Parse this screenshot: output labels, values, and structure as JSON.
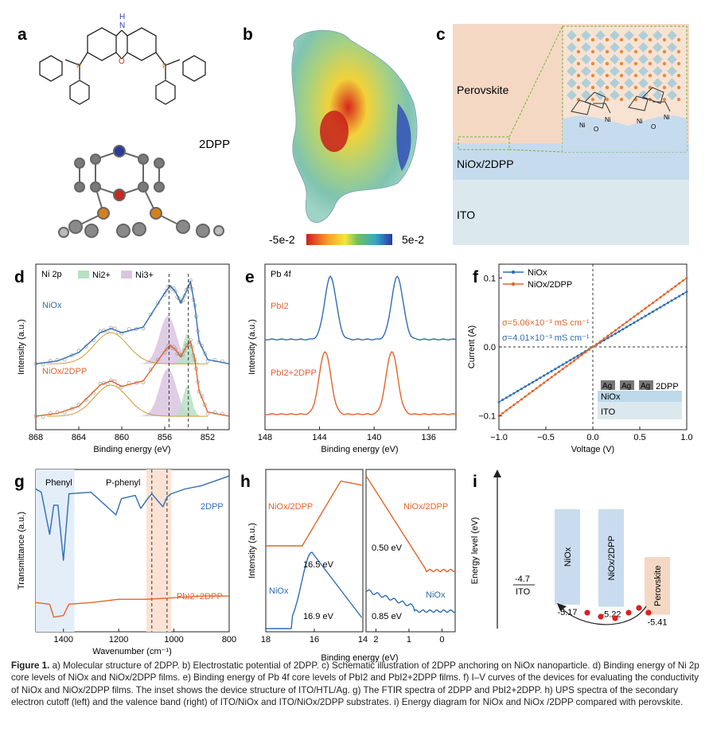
{
  "panel_letters": [
    "a",
    "b",
    "c",
    "d",
    "e",
    "f",
    "g",
    "h",
    "i"
  ],
  "panel_a": {
    "molecule_label": "2DPP",
    "atom_n": "N",
    "atom_h": "H",
    "atom_o": "O",
    "atom_p": "P"
  },
  "panel_b": {
    "colorbar_min": "-5e-2",
    "colorbar_max": "5e-2"
  },
  "panel_c": {
    "layers": [
      "Perovskite",
      "NiOx/2DPP",
      "ITO"
    ],
    "ni_label": "Ni",
    "o_label": "O"
  },
  "panel_d": {
    "corner_label": "Ni 2p",
    "legend": [
      "Ni2+",
      "Ni3+"
    ],
    "traces": [
      "NiOx",
      "NiOx/2DPP"
    ],
    "xlabel": "Binding energy (eV)",
    "ylabel": "Intensity (a.u.)",
    "ticks": [
      "868",
      "864",
      "860",
      "856",
      "852"
    ]
  },
  "panel_e": {
    "corner_label": "Pb 4f",
    "traces": [
      "PbI2",
      "PbI2+2DPP"
    ],
    "xlabel": "Binding energy (eV)",
    "ylabel": "Intensity (a.u.)",
    "ticks": [
      "148",
      "144",
      "140",
      "136"
    ]
  },
  "panel_f": {
    "legend": [
      "NiOx",
      "NiOx/2DPP"
    ],
    "sigma_orange": "σ=5.06×10⁻³ mS cm⁻¹",
    "sigma_blue": "σ=4.01×10⁻³ mS cm⁻¹",
    "xlabel": "Voltage (V)",
    "ylabel": "Current (A)",
    "xticks": [
      "−1.0",
      "−0.5",
      "0.0",
      "0.5",
      "1.0"
    ],
    "yticks": [
      "0.1",
      "0.0",
      "−0.1"
    ],
    "inset": {
      "ag": "Ag",
      "htl": "2DPP",
      "nio": "NiOx",
      "ito": "ITO"
    }
  },
  "panel_g": {
    "band_labels": [
      "Phenyl",
      "P-phenyl"
    ],
    "traces": [
      "2DPP",
      "PbI2+2DPP"
    ],
    "xlabel": "Wavenumber (cm⁻¹)",
    "ylabel": "Transmittance (a.u.)",
    "ticks": [
      "1400",
      "1200",
      "1000",
      "800"
    ]
  },
  "panel_h": {
    "traces": [
      "NiOx/2DPP",
      "NiOx",
      "NiOx/2DPP",
      "NiOx"
    ],
    "values": [
      "16.5 eV",
      "16.9 eV",
      "0.50 eV",
      "0.85 eV"
    ],
    "xlabel": "Binding energy (eV)",
    "ylabel": "Intensity (a.u.)",
    "left_ticks": [
      "18",
      "16",
      "14"
    ],
    "right_ticks": [
      "2",
      "1",
      "0"
    ]
  },
  "panel_i": {
    "ylabel": "Energy level (eV)",
    "ito_value": "-4.7",
    "ito_label": "ITO",
    "bars": [
      "NiOx",
      "NiOx/2DPP",
      "Perovskite"
    ],
    "levels": [
      "-5.17",
      "-5.22",
      "-5.41"
    ]
  },
  "caption": {
    "figure_label": "Figure 1.",
    "text": "a) Molecular structure of 2DPP. b) Electrostatic potential of 2DPP. c) Schematic illustration of 2DPP anchoring on NiOx nanoparticle. d) Binding energy of Ni 2p core levels of NiOx and NiOx/2DPP films. e) Binding energy of Pb 4f core levels of PbI2 and PbI2+2DPP films. f) I–V curves of the devices for evaluating the conductivity of NiOx and NiOx/2DPP films. The inset shows the device structure of ITO/HTL/Ag. g) The FTIR spectra of 2DPP and PbI2+2DPP. h) UPS spectra of the secondary electron cutoff (left) and the valence band (right) of ITO/NiOx and ITO/NiOx/2DPP substrates. i) Energy diagram for NiOx and NiOx /2DPP compared with perovskite."
  },
  "chart_data": [
    {
      "panel": "d",
      "type": "line",
      "title": "Ni 2p",
      "xlabel": "Binding energy (eV)",
      "ylabel": "Intensity (a.u.)",
      "xlim": [
        868,
        850
      ],
      "series": [
        {
          "name": "NiOx",
          "x": [
            868,
            866,
            864,
            862,
            861,
            860,
            858,
            856,
            855.5,
            855,
            854.5,
            854,
            853.6,
            853.2,
            852.8,
            852,
            850
          ],
          "y": [
            0.42,
            0.44,
            0.5,
            0.64,
            0.67,
            0.64,
            0.68,
            0.92,
            0.97,
            0.93,
            0.85,
            0.93,
            1.0,
            0.83,
            0.58,
            0.45,
            0.42
          ]
        },
        {
          "name": "NiOx/2DPP",
          "x": [
            868,
            866,
            864,
            862,
            861,
            860,
            858,
            856,
            855.5,
            855,
            854.5,
            854,
            853.6,
            853.2,
            852.8,
            852,
            850
          ],
          "y": [
            0.05,
            0.07,
            0.12,
            0.27,
            0.3,
            0.26,
            0.3,
            0.51,
            0.55,
            0.52,
            0.47,
            0.54,
            0.58,
            0.45,
            0.23,
            0.08,
            0.05
          ]
        }
      ],
      "reference_lines": [
        855.6,
        853.8
      ]
    },
    {
      "panel": "e",
      "type": "line",
      "title": "Pb 4f",
      "xlabel": "Binding energy (eV)",
      "ylabel": "Intensity (a.u.)",
      "xlim": [
        148,
        134
      ],
      "series": [
        {
          "name": "PbI2",
          "peaks": [
            143.2,
            138.3
          ],
          "baseline": 0.55,
          "height": 0.42
        },
        {
          "name": "PbI2+2DPP",
          "peaks": [
            143.6,
            138.7
          ],
          "baseline": 0.05,
          "height": 0.42
        }
      ]
    },
    {
      "panel": "f",
      "type": "scatter",
      "xlabel": "Voltage (V)",
      "ylabel": "Current (A)",
      "xlim": [
        -1.0,
        1.0
      ],
      "ylim": [
        -0.12,
        0.12
      ],
      "series": [
        {
          "name": "NiOx",
          "slope": 0.08,
          "color": "#2f6db3"
        },
        {
          "name": "NiOx/2DPP",
          "slope": 0.1,
          "color": "#e3642a"
        }
      ]
    },
    {
      "panel": "g",
      "type": "line",
      "xlabel": "Wavenumber (cm⁻¹)",
      "ylabel": "Transmittance (a.u.)",
      "xlim": [
        1500,
        800
      ],
      "series": [
        {
          "name": "2DPP",
          "x": [
            1500,
            1480,
            1450,
            1435,
            1420,
            1400,
            1380,
            1300,
            1210,
            1190,
            1140,
            1120,
            1095,
            1080,
            1040,
            1025,
            1010,
            960,
            900,
            850,
            800
          ],
          "y": [
            0.88,
            0.86,
            0.6,
            0.78,
            0.78,
            0.44,
            0.85,
            0.86,
            0.72,
            0.82,
            0.84,
            0.76,
            0.82,
            0.85,
            0.77,
            0.83,
            0.85,
            0.88,
            0.9,
            0.93,
            0.96
          ]
        },
        {
          "name": "PbI2+2DPP",
          "x": [
            1500,
            1450,
            1435,
            1400,
            1380,
            1300,
            1200,
            1100,
            1000,
            900,
            800
          ],
          "y": [
            0.18,
            0.17,
            0.09,
            0.1,
            0.17,
            0.18,
            0.2,
            0.2,
            0.21,
            0.22,
            0.22
          ]
        }
      ],
      "bands": [
        [
          1500,
          1360
        ],
        [
          1100,
          1010
        ]
      ],
      "reference_lines": [
        1080,
        1025
      ]
    },
    {
      "panel": "h",
      "type": "line",
      "xlabel": "Binding energy (eV)",
      "ylabel": "Intensity (a.u.)",
      "series": [
        {
          "name": "NiOx/2DPP (cutoff)",
          "onset": 16.5
        },
        {
          "name": "NiOx (cutoff)",
          "onset": 16.9
        },
        {
          "name": "NiOx/2DPP (VB)",
          "onset": 0.5
        },
        {
          "name": "NiOx (VB)",
          "onset": 0.85
        }
      ]
    },
    {
      "panel": "i",
      "type": "bar",
      "ylabel": "Energy level (eV)",
      "categories": [
        "ITO",
        "NiOx",
        "NiOx/2DPP",
        "Perovskite"
      ],
      "values": [
        -4.7,
        -5.17,
        -5.22,
        -5.41
      ]
    }
  ]
}
